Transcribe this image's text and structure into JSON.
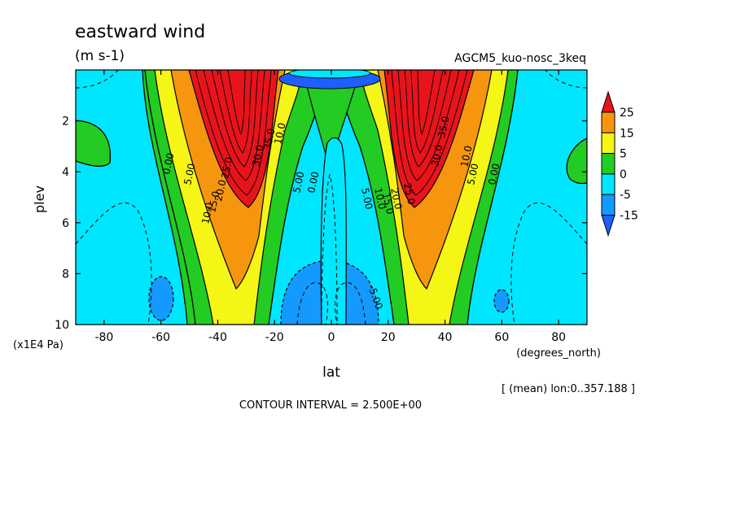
{
  "chart_data": {
    "type": "heatmap",
    "title": "eastward wind",
    "units": "(m s-1)",
    "dataset": "AGCM5_kuo-nosc_3keq",
    "xlabel": "lat",
    "x_units": "(degrees_north)",
    "ylabel": "plev",
    "y_units": "(x1E4 Pa)",
    "x_ticks": [
      "-80",
      "-60",
      "-40",
      "-20",
      "0",
      "20",
      "40",
      "60",
      "80"
    ],
    "y_ticks": [
      "2",
      "4",
      "6",
      "8",
      "10"
    ],
    "xlim": [
      -90,
      90
    ],
    "ylim": [
      10,
      0
    ],
    "averaging_note": "[ (mean) lon:0..357.188 ]",
    "contour_note": "CONTOUR INTERVAL = 2.500E+00",
    "contour_interval": 2.5,
    "colorbar": {
      "labels": [
        "25",
        "15",
        "5",
        "0",
        "-5",
        "-15"
      ],
      "colors": [
        "#e8141c",
        "#f6960f",
        "#f5f516",
        "#22cc22",
        "#00e6ff",
        "#1499ff",
        "#1e5fff"
      ]
    },
    "contour_labels": [
      "0.00",
      "5.00",
      "10.0",
      "15.0",
      "20.0",
      "25.0",
      "30.0",
      "35.0",
      "-5.00"
    ],
    "jets": [
      {
        "lat": -30,
        "plev": 2.5,
        "max_value": 35
      },
      {
        "lat": 30,
        "plev": 2.5,
        "max_value": 35
      }
    ]
  }
}
